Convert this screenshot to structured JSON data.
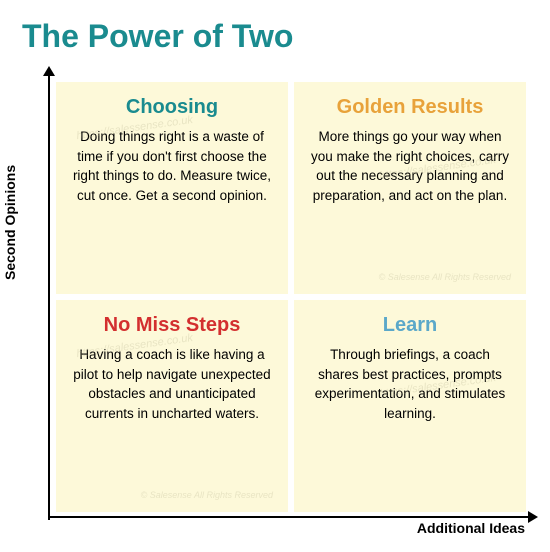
{
  "title": "The Power of Two",
  "axes": {
    "y_label": "Second Opinions",
    "x_label": "Additional Ideas",
    "axis_color": "#000000"
  },
  "colors": {
    "title_color": "#1a8b8f",
    "quad_bg": "#fdf9d9",
    "background": "#ffffff",
    "body_text": "#000000"
  },
  "quadrants": {
    "top_left": {
      "title": "Choosing",
      "title_color": "#1a8b8f",
      "body": "Doing things right is a waste of time if you don't first choose the right things to do. Measure twice, cut once. Get a second opinion."
    },
    "top_right": {
      "title": "Golden Results",
      "title_color": "#e8a23a",
      "body": "More things go your way when you make the right choices, carry out the necessary planning and preparation, and act on the plan."
    },
    "bottom_left": {
      "title": "No Miss Steps",
      "title_color": "#d32f2f",
      "body": "Having a coach is like having a pilot to help navigate unexpected obstacles and unanticipated currents in uncharted waters."
    },
    "bottom_right": {
      "title": "Learn",
      "title_color": "#5ba8c9",
      "body": "Through briefings, a coach shares best practices, prompts experimentation, and stimulates learning."
    }
  },
  "watermarks": {
    "url": "https://salessense.co.uk",
    "copyright": "© Salesense All Rights Reserved"
  },
  "typography": {
    "title_fontsize": 32,
    "quad_title_fontsize": 20,
    "body_fontsize": 13.5,
    "axis_label_fontsize": 14
  }
}
